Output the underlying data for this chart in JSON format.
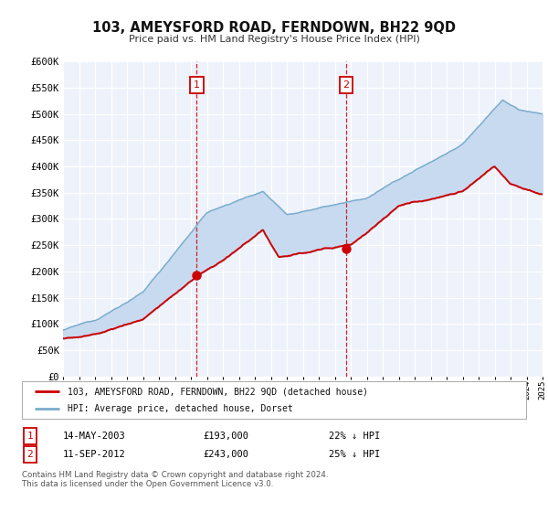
{
  "title": "103, AMEYSFORD ROAD, FERNDOWN, BH22 9QD",
  "subtitle": "Price paid vs. HM Land Registry's House Price Index (HPI)",
  "legend_label_red": "103, AMEYSFORD ROAD, FERNDOWN, BH22 9QD (detached house)",
  "legend_label_blue": "HPI: Average price, detached house, Dorset",
  "sale1_date": "14-MAY-2003",
  "sale1_price": "£193,000",
  "sale1_pct": "22% ↓ HPI",
  "sale2_date": "11-SEP-2012",
  "sale2_price": "£243,000",
  "sale2_pct": "25% ↓ HPI",
  "footer1": "Contains HM Land Registry data © Crown copyright and database right 2024.",
  "footer2": "This data is licensed under the Open Government Licence v3.0.",
  "sale1_year": 2003.37,
  "sale2_year": 2012.71,
  "sale1_value": 193000,
  "sale2_value": 243000,
  "xmin": 1995,
  "xmax": 2025,
  "ymin": 0,
  "ymax": 600000,
  "yticks": [
    0,
    50000,
    100000,
    150000,
    200000,
    250000,
    300000,
    350000,
    400000,
    450000,
    500000,
    550000,
    600000
  ],
  "background_color": "#eef2fb",
  "grid_color": "#d8dde8",
  "red_color": "#cc0000",
  "blue_color": "#7aadcc",
  "fill_color": "#c8daf0"
}
